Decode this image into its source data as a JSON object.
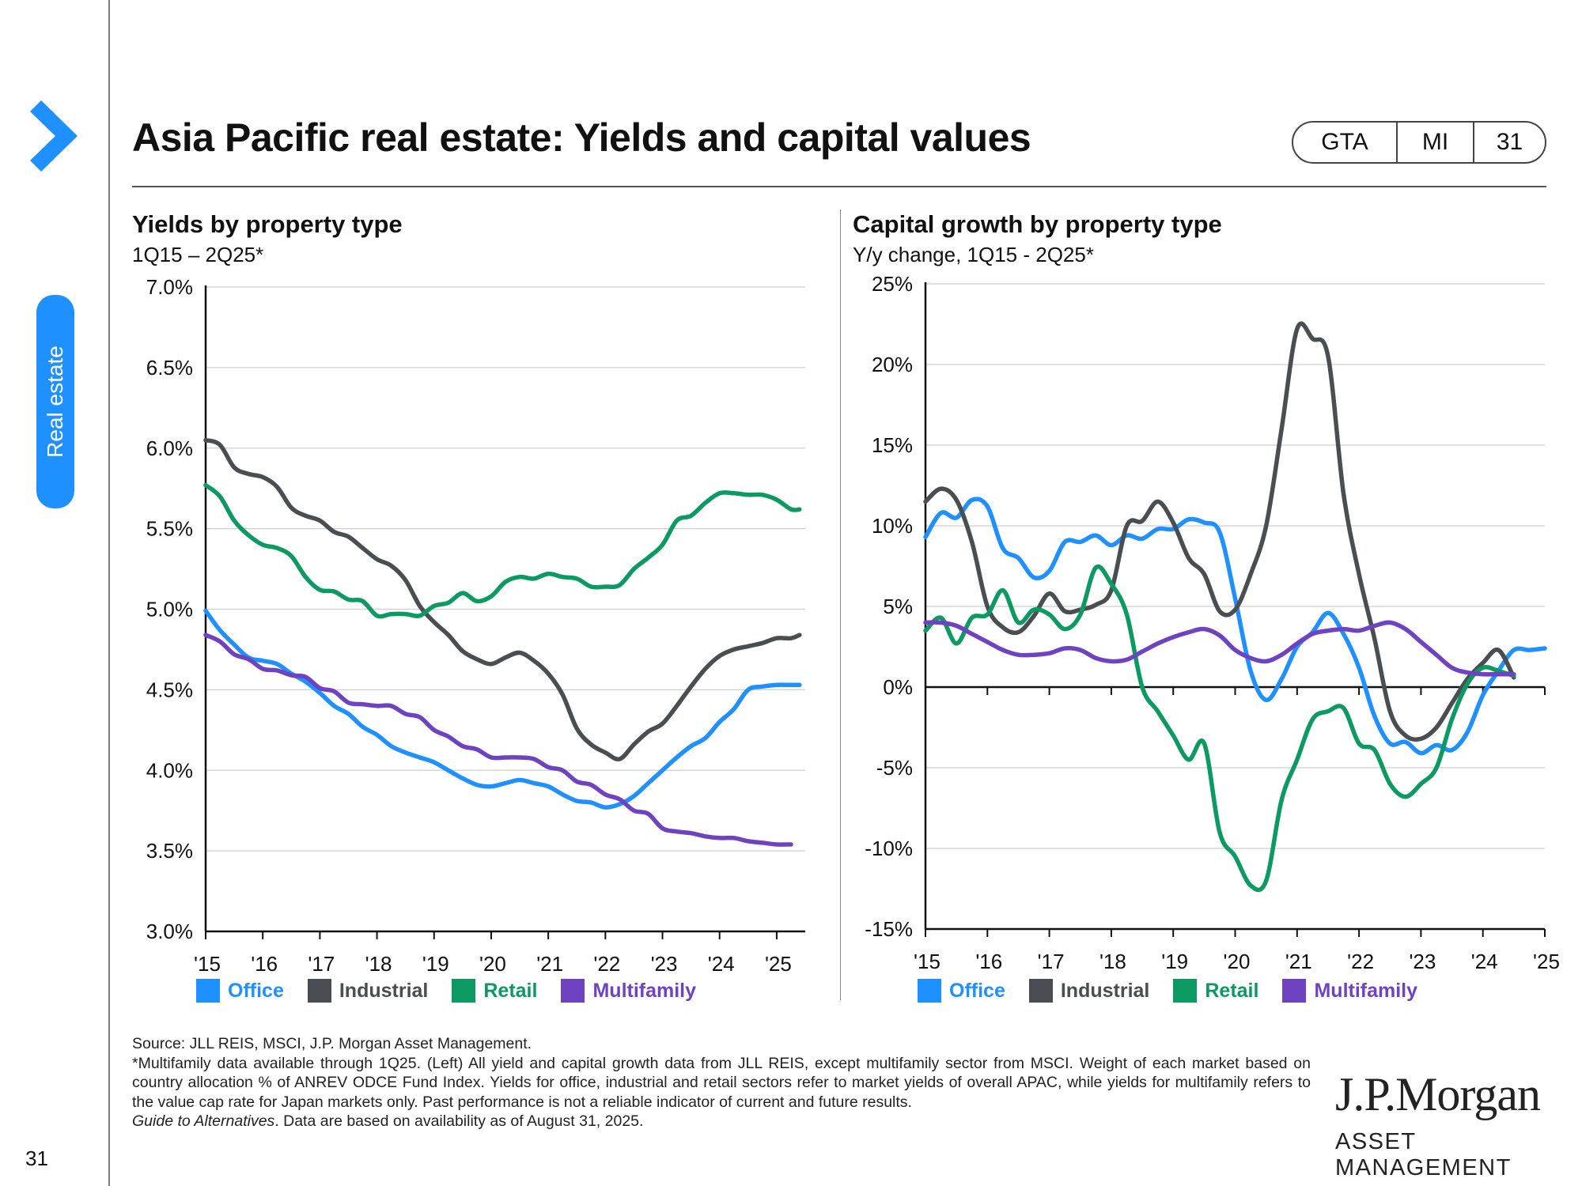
{
  "page": {
    "title": "Asia Pacific real estate: Yields and capital values",
    "side_tab": "Real estate",
    "badges": [
      "GTA",
      "MI",
      "31"
    ],
    "page_number": "31"
  },
  "colors": {
    "Office": "#1e90ff",
    "Industrial": "#4a4d51",
    "Retail": "#0a9a62",
    "Multifamily": "#6f42c1",
    "accent": "#1e90ff"
  },
  "left_panel": {
    "title": "Yields by property type",
    "subtitle": "1Q15 – 2Q25*"
  },
  "right_panel": {
    "title": "Capital growth by property type",
    "subtitle": "Y/y change, 1Q15 - 2Q25*"
  },
  "chart_data": [
    {
      "type": "line",
      "title": "Yields by property type",
      "x_range": [
        2015,
        2025.5
      ],
      "x_ticks": [
        2015,
        2016,
        2017,
        2018,
        2019,
        2020,
        2021,
        2022,
        2023,
        2024,
        2025
      ],
      "x_tick_labels": [
        "'15",
        "'16",
        "'17",
        "'18",
        "'19",
        "'20",
        "'21",
        "'22",
        "'23",
        "'24",
        "'25"
      ],
      "ylim": [
        3.0,
        7.0
      ],
      "y_ticks": [
        3.0,
        3.5,
        4.0,
        4.5,
        5.0,
        5.5,
        6.0,
        6.5,
        7.0
      ],
      "y_tick_labels": [
        "3.0%",
        "3.5%",
        "4.0%",
        "4.5%",
        "5.0%",
        "5.5%",
        "6.0%",
        "6.5%",
        "7.0%"
      ],
      "series": [
        {
          "name": "Office",
          "x": [
            2015,
            2015.25,
            2015.5,
            2015.75,
            2016,
            2016.25,
            2016.5,
            2016.75,
            2017,
            2017.25,
            2017.5,
            2017.75,
            2018,
            2018.25,
            2018.5,
            2018.75,
            2019,
            2019.25,
            2019.5,
            2019.75,
            2020,
            2020.25,
            2020.5,
            2020.75,
            2021,
            2021.25,
            2021.5,
            2021.75,
            2022,
            2022.25,
            2022.5,
            2022.75,
            2023,
            2023.25,
            2023.5,
            2023.75,
            2024,
            2024.25,
            2024.5,
            2024.75,
            2025,
            2025.25,
            2025.4
          ],
          "values": [
            4.99,
            4.87,
            4.78,
            4.7,
            4.68,
            4.66,
            4.6,
            4.55,
            4.48,
            4.4,
            4.35,
            4.27,
            4.22,
            4.15,
            4.11,
            4.08,
            4.05,
            4.0,
            3.95,
            3.91,
            3.9,
            3.92,
            3.94,
            3.92,
            3.9,
            3.85,
            3.81,
            3.8,
            3.77,
            3.79,
            3.84,
            3.92,
            4.0,
            4.08,
            4.15,
            4.2,
            4.3,
            4.38,
            4.5,
            4.52,
            4.53,
            4.53,
            4.53
          ]
        },
        {
          "name": "Industrial",
          "x": [
            2015,
            2015.25,
            2015.5,
            2015.75,
            2016,
            2016.25,
            2016.5,
            2016.75,
            2017,
            2017.25,
            2017.5,
            2017.75,
            2018,
            2018.25,
            2018.5,
            2018.75,
            2019,
            2019.25,
            2019.5,
            2019.75,
            2020,
            2020.25,
            2020.5,
            2020.75,
            2021,
            2021.25,
            2021.5,
            2021.75,
            2022,
            2022.25,
            2022.5,
            2022.75,
            2023,
            2023.25,
            2023.5,
            2023.75,
            2024,
            2024.25,
            2024.5,
            2024.75,
            2025,
            2025.25,
            2025.4
          ],
          "values": [
            6.05,
            6.02,
            5.88,
            5.84,
            5.82,
            5.76,
            5.63,
            5.58,
            5.55,
            5.48,
            5.45,
            5.38,
            5.31,
            5.27,
            5.18,
            5.02,
            4.92,
            4.84,
            4.74,
            4.69,
            4.66,
            4.7,
            4.73,
            4.68,
            4.6,
            4.47,
            4.26,
            4.16,
            4.11,
            4.07,
            4.16,
            4.24,
            4.29,
            4.4,
            4.52,
            4.63,
            4.71,
            4.75,
            4.77,
            4.79,
            4.82,
            4.82,
            4.84
          ]
        },
        {
          "name": "Retail",
          "x": [
            2015,
            2015.25,
            2015.5,
            2015.75,
            2016,
            2016.25,
            2016.5,
            2016.75,
            2017,
            2017.25,
            2017.5,
            2017.75,
            2018,
            2018.25,
            2018.5,
            2018.75,
            2019,
            2019.25,
            2019.5,
            2019.75,
            2020,
            2020.25,
            2020.5,
            2020.75,
            2021,
            2021.25,
            2021.5,
            2021.75,
            2022,
            2022.25,
            2022.5,
            2022.75,
            2023,
            2023.25,
            2023.5,
            2023.75,
            2024,
            2024.25,
            2024.5,
            2024.75,
            2025,
            2025.25,
            2025.4
          ],
          "values": [
            5.77,
            5.7,
            5.55,
            5.46,
            5.4,
            5.38,
            5.33,
            5.2,
            5.12,
            5.11,
            5.06,
            5.05,
            4.96,
            4.97,
            4.97,
            4.96,
            5.02,
            5.04,
            5.1,
            5.05,
            5.08,
            5.17,
            5.2,
            5.19,
            5.22,
            5.2,
            5.19,
            5.14,
            5.14,
            5.15,
            5.25,
            5.32,
            5.4,
            5.55,
            5.58,
            5.66,
            5.72,
            5.72,
            5.71,
            5.71,
            5.68,
            5.62,
            5.62
          ]
        },
        {
          "name": "Multifamily",
          "x": [
            2015,
            2015.25,
            2015.5,
            2015.75,
            2016,
            2016.25,
            2016.5,
            2016.75,
            2017,
            2017.25,
            2017.5,
            2017.75,
            2018,
            2018.25,
            2018.5,
            2018.75,
            2019,
            2019.25,
            2019.5,
            2019.75,
            2020,
            2020.25,
            2020.5,
            2020.75,
            2021,
            2021.25,
            2021.5,
            2021.75,
            2022,
            2022.25,
            2022.5,
            2022.75,
            2023,
            2023.25,
            2023.5,
            2023.75,
            2024,
            2024.25,
            2024.5,
            2024.75,
            2025,
            2025.25
          ],
          "values": [
            4.84,
            4.8,
            4.72,
            4.69,
            4.63,
            4.62,
            4.59,
            4.58,
            4.51,
            4.49,
            4.42,
            4.41,
            4.4,
            4.4,
            4.35,
            4.33,
            4.25,
            4.21,
            4.15,
            4.13,
            4.08,
            4.08,
            4.08,
            4.07,
            4.02,
            4.0,
            3.93,
            3.91,
            3.85,
            3.82,
            3.75,
            3.73,
            3.64,
            3.62,
            3.61,
            3.59,
            3.58,
            3.58,
            3.56,
            3.55,
            3.54,
            3.54
          ]
        }
      ]
    },
    {
      "type": "line",
      "title": "Capital growth by property type",
      "x_range": [
        2015,
        2025
      ],
      "x_ticks": [
        2015,
        2016,
        2017,
        2018,
        2019,
        2020,
        2021,
        2022,
        2023,
        2024,
        2025
      ],
      "x_tick_labels": [
        "'15",
        "'16",
        "'17",
        "'18",
        "'19",
        "'20",
        "'21",
        "'22",
        "'23",
        "'24",
        "'25"
      ],
      "ylim": [
        -15,
        25
      ],
      "y_ticks": [
        -15,
        -10,
        -5,
        0,
        5,
        10,
        15,
        20,
        25
      ],
      "y_tick_labels": [
        "-15%",
        "-10%",
        "-5%",
        "0%",
        "5%",
        "10%",
        "15%",
        "20%",
        "25%"
      ],
      "series": [
        {
          "name": "Office",
          "x": [
            2015,
            2015.25,
            2015.5,
            2015.75,
            2016,
            2016.25,
            2016.5,
            2016.75,
            2017,
            2017.25,
            2017.5,
            2017.75,
            2018,
            2018.25,
            2018.5,
            2018.75,
            2019,
            2019.25,
            2019.5,
            2019.75,
            2020,
            2020.25,
            2020.5,
            2020.75,
            2021,
            2021.25,
            2021.5,
            2021.75,
            2022,
            2022.25,
            2022.5,
            2022.75,
            2023,
            2023.25,
            2023.5,
            2023.75,
            2024,
            2024.25,
            2024.5,
            2024.75,
            2025
          ],
          "values": [
            9.3,
            10.8,
            10.5,
            11.6,
            11.2,
            8.6,
            8.0,
            6.8,
            7.2,
            9.0,
            9.0,
            9.4,
            8.8,
            9.4,
            9.2,
            9.8,
            9.8,
            10.4,
            10.2,
            9.6,
            5.5,
            1.0,
            -0.8,
            0.5,
            2.5,
            3.4,
            4.6,
            3.3,
            1.2,
            -1.8,
            -3.5,
            -3.4,
            -4.1,
            -3.6,
            -3.9,
            -2.8,
            -0.5,
            1.0,
            2.3,
            2.3,
            2.4
          ]
        },
        {
          "name": "Industrial",
          "x": [
            2015,
            2015.25,
            2015.5,
            2015.75,
            2016,
            2016.25,
            2016.5,
            2016.75,
            2017,
            2017.25,
            2017.5,
            2017.75,
            2018,
            2018.25,
            2018.5,
            2018.75,
            2019,
            2019.25,
            2019.5,
            2019.75,
            2020,
            2020.25,
            2020.5,
            2020.75,
            2021,
            2021.25,
            2021.5,
            2021.75,
            2022,
            2022.25,
            2022.5,
            2022.75,
            2023,
            2023.25,
            2023.5,
            2023.75,
            2024,
            2024.25,
            2024.5,
            2024.75,
            2025
          ],
          "values": [
            11.5,
            12.3,
            11.6,
            9.0,
            5.0,
            3.7,
            3.4,
            4.4,
            5.8,
            4.7,
            4.8,
            5.1,
            6.0,
            10.0,
            10.3,
            11.5,
            10.2,
            8.0,
            7.0,
            4.7,
            4.8,
            7.0,
            10.0,
            16.0,
            22.2,
            21.6,
            20.5,
            12.0,
            7.0,
            3.0,
            -1.5,
            -3.0,
            -3.2,
            -2.5,
            -1.0,
            0.5,
            1.5,
            2.3,
            0.6,
            null,
            null
          ]
        },
        {
          "name": "Retail",
          "x": [
            2015,
            2015.25,
            2015.5,
            2015.75,
            2016,
            2016.25,
            2016.5,
            2016.75,
            2017,
            2017.25,
            2017.5,
            2017.75,
            2018,
            2018.25,
            2018.5,
            2018.75,
            2019,
            2019.25,
            2019.5,
            2019.75,
            2020,
            2020.25,
            2020.5,
            2020.75,
            2021,
            2021.25,
            2021.5,
            2021.75,
            2022,
            2022.25,
            2022.5,
            2022.75,
            2023,
            2023.25,
            2023.5,
            2023.75,
            2024,
            2024.25,
            2024.5,
            2024.75,
            2025
          ],
          "values": [
            3.5,
            4.3,
            2.7,
            4.3,
            4.5,
            6.0,
            4.0,
            4.8,
            4.5,
            3.6,
            4.5,
            7.4,
            6.4,
            4.5,
            0.0,
            -1.5,
            -3.0,
            -4.5,
            -3.5,
            -9.0,
            -10.5,
            -12.3,
            -12.0,
            -7.0,
            -4.5,
            -2.0,
            -1.5,
            -1.3,
            -3.5,
            -3.9,
            -6.0,
            -6.8,
            -6.0,
            -5.0,
            -2.0,
            0.2,
            1.2,
            1.0,
            0.7,
            null,
            null
          ]
        },
        {
          "name": "Multifamily",
          "x": [
            2015,
            2015.25,
            2015.5,
            2015.75,
            2016,
            2016.25,
            2016.5,
            2016.75,
            2017,
            2017.25,
            2017.5,
            2017.75,
            2018,
            2018.25,
            2018.5,
            2018.75,
            2019,
            2019.25,
            2019.5,
            2019.75,
            2020,
            2020.25,
            2020.5,
            2020.75,
            2021,
            2021.25,
            2021.5,
            2021.75,
            2022,
            2022.25,
            2022.5,
            2022.75,
            2023,
            2023.25,
            2023.5,
            2023.75,
            2024,
            2024.25,
            2024.5,
            2024.75,
            2025
          ],
          "values": [
            4.0,
            4.0,
            3.8,
            3.3,
            2.8,
            2.3,
            2.0,
            2.0,
            2.1,
            2.4,
            2.3,
            1.8,
            1.6,
            1.7,
            2.2,
            2.7,
            3.1,
            3.4,
            3.6,
            3.2,
            2.3,
            1.8,
            1.6,
            2.0,
            2.7,
            3.3,
            3.5,
            3.6,
            3.5,
            3.8,
            4.0,
            3.6,
            2.8,
            2.0,
            1.2,
            0.9,
            0.8,
            0.8,
            0.8,
            null,
            null
          ]
        }
      ]
    }
  ],
  "legend": [
    "Office",
    "Industrial",
    "Retail",
    "Multifamily"
  ],
  "footnotes": {
    "source": "Source: JLL REIS, MSCI, J.P. Morgan Asset Management.",
    "note": "*Multifamily data available through 1Q25. (Left) All yield and capital growth data from JLL REIS, except multifamily sector from MSCI. Weight of each market based on country allocation % of ANREV ODCE Fund Index. Yields for office, industrial and retail sectors refer to market yields of overall APAC, while yields for multifamily refers to the value cap rate for Japan markets only. Past performance is not a reliable indicator of current and future results.",
    "guide_italic": "Guide to Alternatives",
    "guide_rest": ". Data are based on availability as of August 31, 2025."
  },
  "logo": {
    "line1": "J.P.Morgan",
    "line2": "ASSET MANAGEMENT"
  }
}
